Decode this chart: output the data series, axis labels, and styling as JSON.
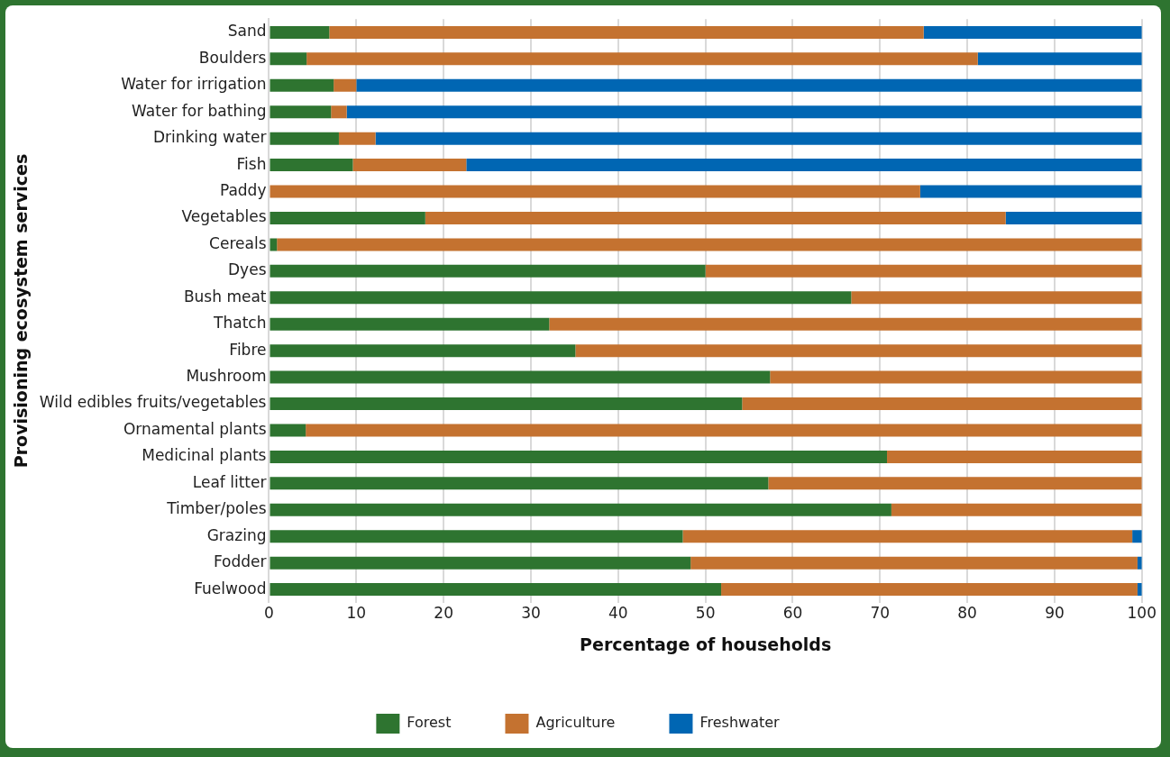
{
  "chart_data": {
    "type": "bar",
    "orientation": "horizontal",
    "stacked": true,
    "xlabel": "Percentage of households",
    "ylabel": "Provisioning ecosystem services",
    "categories": [
      "Sand",
      "Boulders",
      "Water for irrigation",
      "Water for bathing",
      "Drinking water",
      "Fish",
      "Paddy",
      "Vegetables",
      "Cereals",
      "Dyes",
      "Bush meat",
      "Thatch",
      "Fibre",
      "Mushroom",
      "Wild edibles fruits/vegetables",
      "Ornamental plants",
      "Medicinal plants",
      "Leaf litter",
      "Timber/poles",
      "Grazing",
      "Fodder",
      "Fuelwood"
    ],
    "series": [
      {
        "name": "Forest",
        "color": "#2e7430",
        "values": [
          6.9,
          4.3,
          7.4,
          7.1,
          8.0,
          9.6,
          0,
          17.9,
          0.9,
          50.0,
          66.7,
          32.1,
          35.1,
          57.4,
          54.2,
          4.2,
          70.8,
          57.2,
          71.3,
          47.4,
          48.3,
          51.8
        ]
      },
      {
        "name": "Agriculture",
        "color": "#c47230",
        "values": [
          68.1,
          76.9,
          2.6,
          1.8,
          4.2,
          13.0,
          74.6,
          66.5,
          99.1,
          50.0,
          33.3,
          67.9,
          64.9,
          42.6,
          45.8,
          95.8,
          29.2,
          42.8,
          28.7,
          51.5,
          51.2,
          47.7
        ]
      },
      {
        "name": "Freshwater",
        "color": "#0066b3",
        "values": [
          25.0,
          18.8,
          90.0,
          91.1,
          87.8,
          77.4,
          25.4,
          15.6,
          0,
          0,
          0,
          0,
          0,
          0,
          0,
          0,
          0,
          0,
          0,
          1.1,
          0.5,
          0.5
        ]
      }
    ],
    "xlim": [
      0,
      100
    ],
    "xticks": [
      0,
      10,
      20,
      30,
      40,
      50,
      60,
      70,
      80,
      90,
      100
    ],
    "grid": "x",
    "legend": "bottom"
  }
}
